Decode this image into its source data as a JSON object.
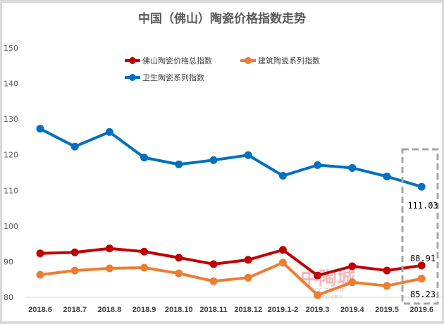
{
  "chart_data": {
    "type": "line",
    "title": "中国（佛山）陶瓷价格指数走势",
    "categories": [
      "2018.6",
      "2018.7",
      "2018.8",
      "2018.9",
      "2018.10",
      "2018.11",
      "2018.12",
      "2019.1-2",
      "2019.3",
      "2019.4",
      "2019.5",
      "2019.6"
    ],
    "ylim": [
      80,
      150
    ],
    "yticks": [
      80,
      90,
      100,
      110,
      120,
      130,
      140,
      150
    ],
    "grid": false,
    "legend_position": "top-center",
    "series": [
      {
        "name": "佛山陶瓷价格总指数",
        "color": "#c00000",
        "values": [
          92.3,
          92.6,
          93.7,
          92.8,
          91.1,
          89.3,
          90.5,
          93.3,
          86.1,
          88.7,
          87.5,
          88.91
        ]
      },
      {
        "name": "建筑陶瓷系列指数",
        "color": "#ed7d31",
        "values": [
          86.3,
          87.5,
          88.1,
          88.3,
          86.7,
          84.5,
          85.5,
          89.7,
          80.6,
          84.2,
          83.2,
          85.23
        ]
      },
      {
        "name": "卫生陶瓷系列指数",
        "color": "#0070c0",
        "values": [
          127.3,
          122.3,
          126.4,
          119.2,
          117.3,
          118.5,
          119.9,
          114.1,
          117.1,
          116.3,
          113.9,
          111.03
        ]
      }
    ],
    "annotations": [
      "111.03",
      "88.91",
      "85.23"
    ]
  },
  "watermark": "中陶城 CCC GROUP 中国陶瓷城集团"
}
